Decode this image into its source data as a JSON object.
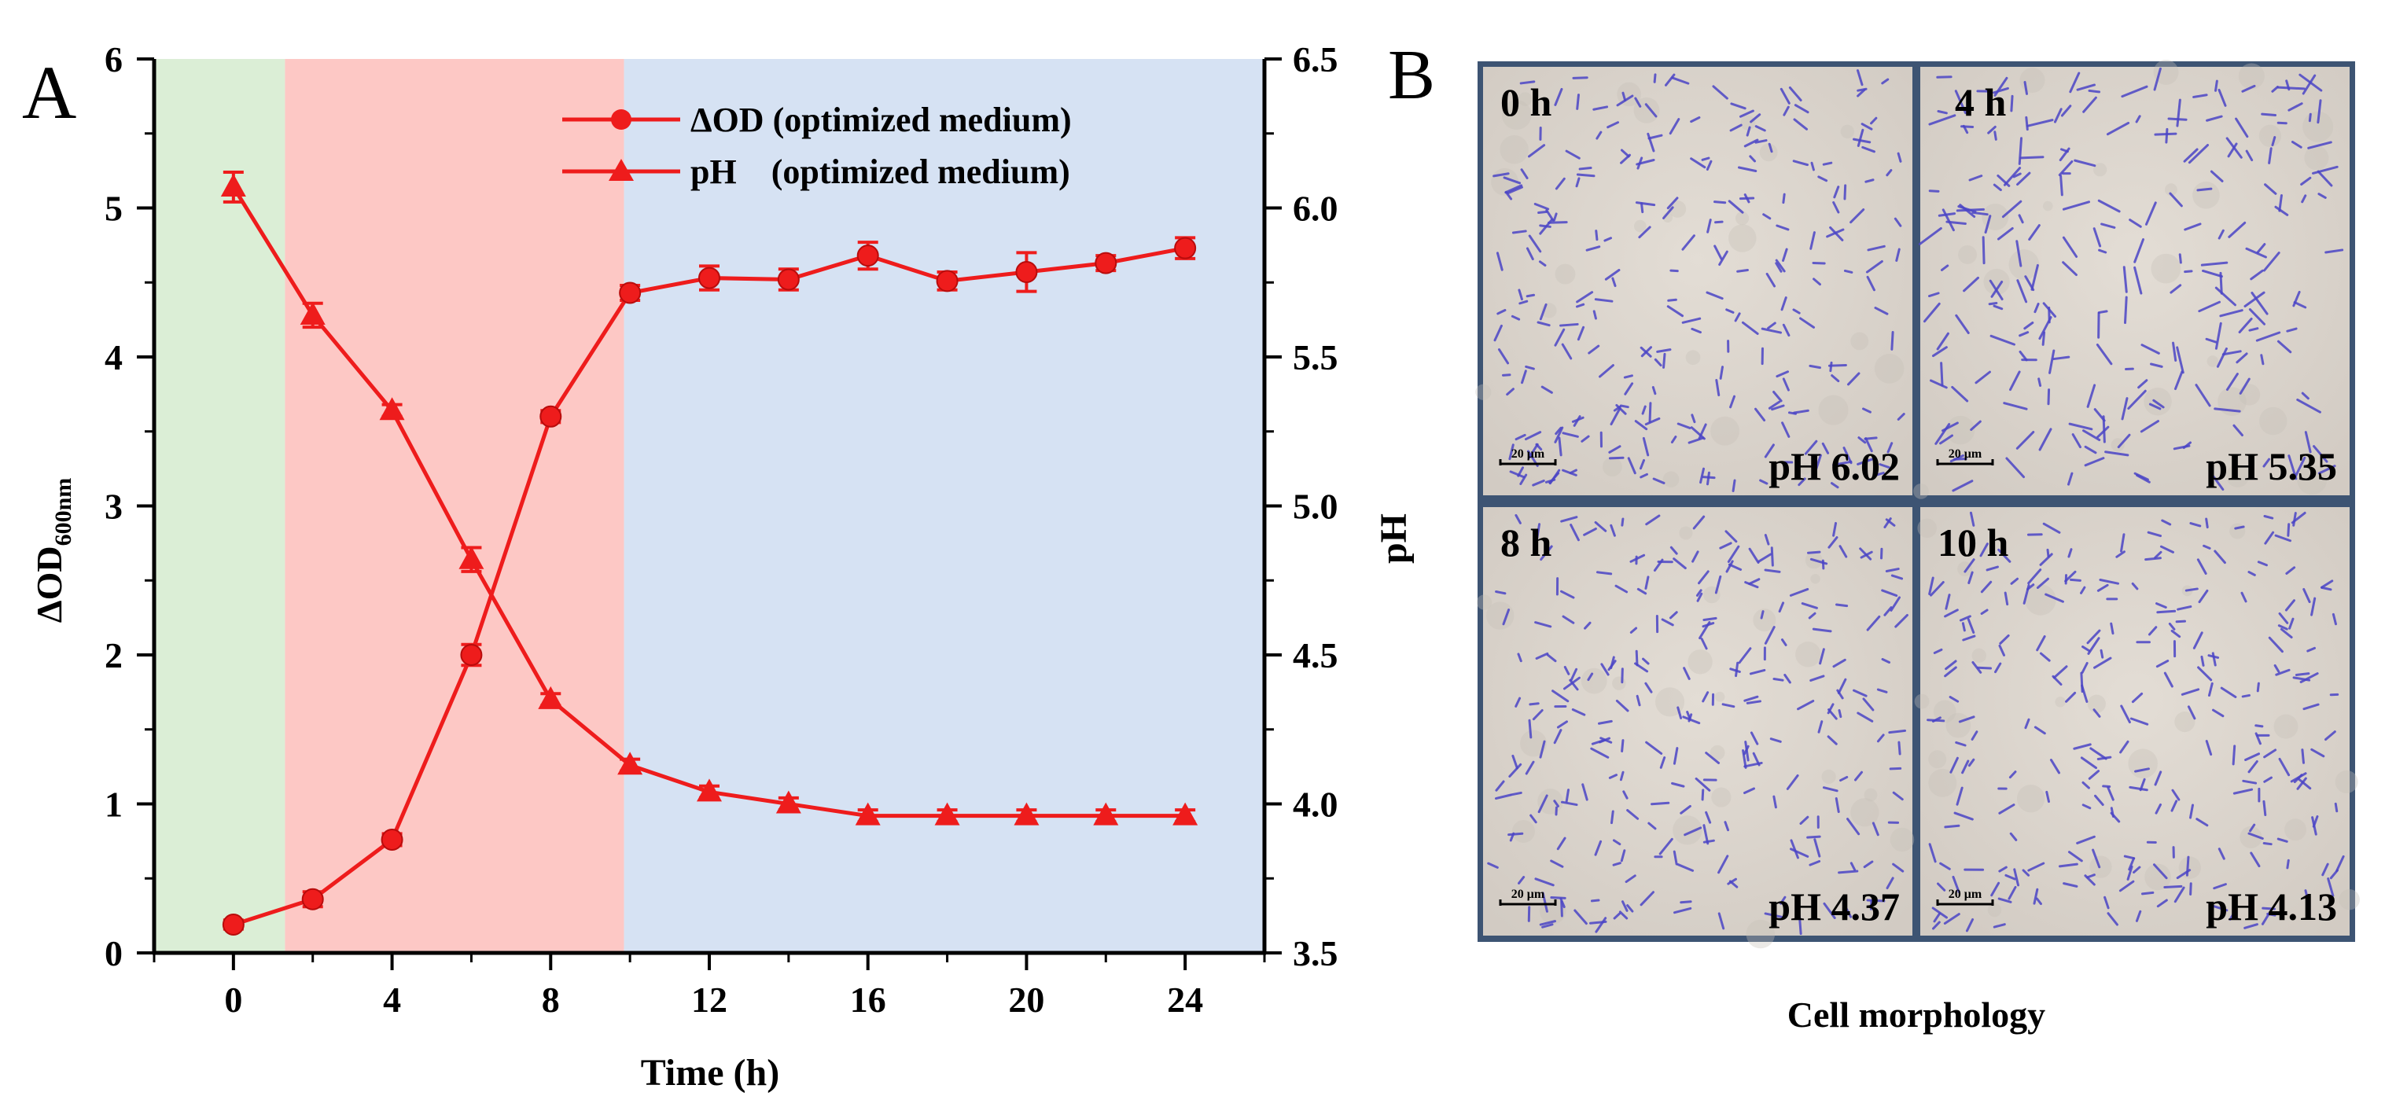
{
  "panel_a_label": "A",
  "panel_b_label": "B",
  "chart_data": {
    "type": "line",
    "title": "",
    "x": [
      0,
      2,
      4,
      6,
      8,
      10,
      12,
      14,
      16,
      18,
      20,
      22,
      24
    ],
    "xlabel": "Time (h)",
    "xticks": [
      0,
      4,
      8,
      12,
      16,
      20,
      24
    ],
    "xlim": [
      -2,
      26
    ],
    "ylabel_left": {
      "main": "ΔOD",
      "sub": "600nm"
    },
    "ylim_left": [
      0,
      6
    ],
    "yticks_left": [
      0,
      1,
      2,
      3,
      4,
      5,
      6
    ],
    "ylabel_right": "pH",
    "ylim_right": [
      3.5,
      6.5
    ],
    "yticks_right": [
      "3.5",
      "4.0",
      "4.5",
      "5.0",
      "5.5",
      "6.0",
      "6.5"
    ],
    "phases": [
      {
        "from": -2,
        "to": 1.3,
        "color": "#dbeed6"
      },
      {
        "from": 1.3,
        "to": 9.85,
        "color": "#fdc8c5"
      },
      {
        "from": 9.85,
        "to": 26,
        "color": "#d6e2f3"
      }
    ],
    "series": [
      {
        "name": "ΔOD (optimized medium)",
        "axis": "left",
        "marker": "circle",
        "color": "#ee1c1c",
        "values": [
          0.19,
          0.36,
          0.76,
          2.0,
          3.6,
          4.43,
          4.53,
          4.52,
          4.68,
          4.51,
          4.57,
          4.63,
          4.73
        ],
        "errors": [
          0.03,
          0.05,
          0.04,
          0.07,
          0.04,
          0.05,
          0.08,
          0.07,
          0.09,
          0.06,
          0.13,
          0.05,
          0.07
        ]
      },
      {
        "name": "pH    (optimized medium)",
        "axis": "right",
        "marker": "triangle",
        "color": "#ee1c1c",
        "values": [
          6.07,
          5.64,
          5.32,
          4.82,
          4.35,
          4.13,
          4.04,
          4.0,
          3.96,
          3.96,
          3.96,
          3.96,
          3.96
        ],
        "errors": [
          0.05,
          0.04,
          0.02,
          0.04,
          0.02,
          0.02,
          0.02,
          0.02,
          0.02,
          0.02,
          0.02,
          0.02,
          0.02
        ]
      }
    ],
    "legend_position": "top-right"
  },
  "micrographs": {
    "caption": "Cell morphology",
    "scale_bar": "20 μm",
    "tiles": [
      {
        "time": "0 h",
        "ph": "pH 6.02"
      },
      {
        "time": "4 h",
        "ph": "pH 5.35"
      },
      {
        "time": "8 h",
        "ph": "pH 4.37"
      },
      {
        "time": "10 h",
        "ph": "pH 4.13"
      }
    ],
    "cell_color": "#4b45c6",
    "background_color": "#d9d3cc",
    "frame_color": "#3d5473"
  }
}
